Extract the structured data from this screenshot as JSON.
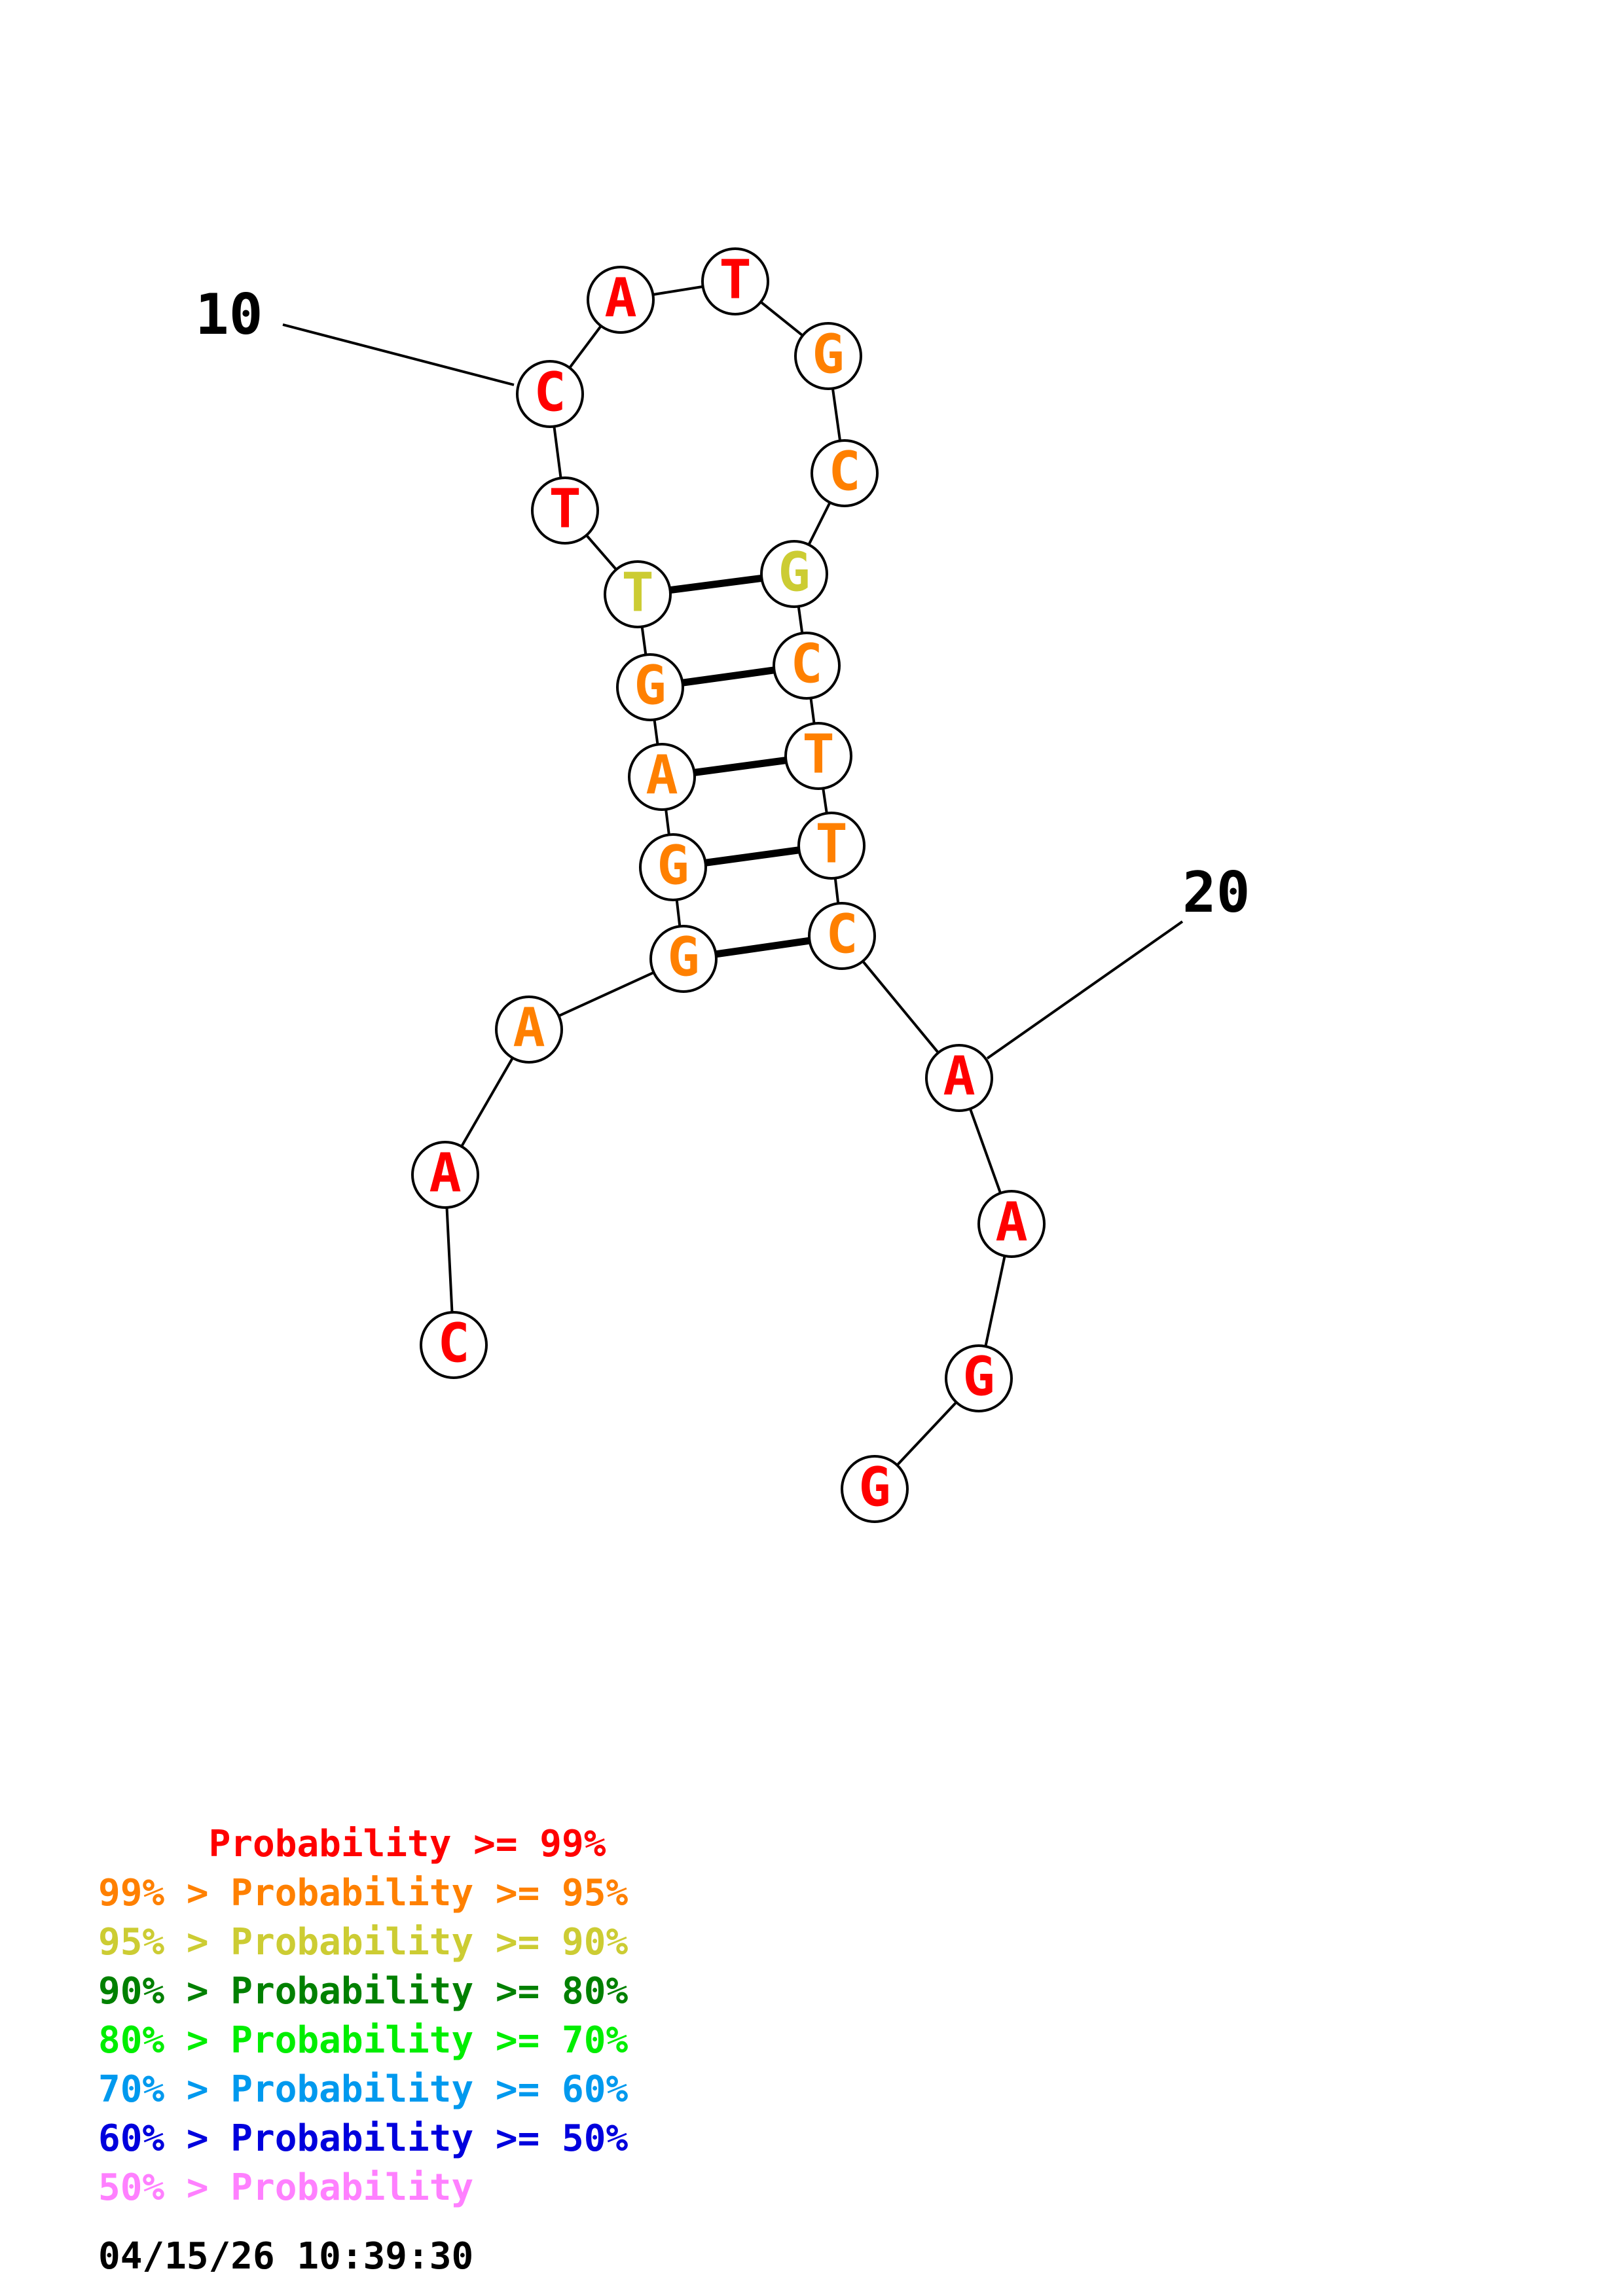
{
  "colors": {
    "p99": "#ff0000",
    "p95": "#ff8000",
    "p90": "#cccc33",
    "p80": "#008000",
    "p70": "#00ee00",
    "p60": "#0099ee",
    "p50": "#0000dd",
    "p0": "#ff80ff"
  },
  "sequence": [
    {
      "index": 1,
      "base": "C",
      "prob": "p99"
    },
    {
      "index": 2,
      "base": "A",
      "prob": "p99"
    },
    {
      "index": 3,
      "base": "A",
      "prob": "p95"
    },
    {
      "index": 4,
      "base": "G",
      "prob": "p95"
    },
    {
      "index": 5,
      "base": "G",
      "prob": "p95"
    },
    {
      "index": 6,
      "base": "A",
      "prob": "p95"
    },
    {
      "index": 7,
      "base": "G",
      "prob": "p95"
    },
    {
      "index": 8,
      "base": "T",
      "prob": "p90"
    },
    {
      "index": 9,
      "base": "T",
      "prob": "p99"
    },
    {
      "index": 10,
      "base": "C",
      "prob": "p99"
    },
    {
      "index": 11,
      "base": "A",
      "prob": "p99"
    },
    {
      "index": 12,
      "base": "T",
      "prob": "p99"
    },
    {
      "index": 13,
      "base": "G",
      "prob": "p95"
    },
    {
      "index": 14,
      "base": "C",
      "prob": "p95"
    },
    {
      "index": 15,
      "base": "G",
      "prob": "p90"
    },
    {
      "index": 16,
      "base": "C",
      "prob": "p95"
    },
    {
      "index": 17,
      "base": "T",
      "prob": "p95"
    },
    {
      "index": 18,
      "base": "T",
      "prob": "p95"
    },
    {
      "index": 19,
      "base": "C",
      "prob": "p95"
    },
    {
      "index": 20,
      "base": "A",
      "prob": "p99"
    },
    {
      "index": 21,
      "base": "A",
      "prob": "p99"
    },
    {
      "index": 22,
      "base": "G",
      "prob": "p99"
    },
    {
      "index": 23,
      "base": "G",
      "prob": "p99"
    }
  ],
  "pairs": [
    [
      4,
      19
    ],
    [
      5,
      18
    ],
    [
      6,
      17
    ],
    [
      7,
      16
    ],
    [
      8,
      15
    ]
  ],
  "number_labels": [
    {
      "index": 10,
      "text": "10"
    },
    {
      "index": 20,
      "text": "20"
    }
  ],
  "legend": [
    {
      "prefix": "     ",
      "text": "Probability >= 99%",
      "prob": "p99"
    },
    {
      "prefix": "99% > ",
      "text": "Probability >= 95%",
      "prob": "p95"
    },
    {
      "prefix": "95% > ",
      "text": "Probability >= 90%",
      "prob": "p90"
    },
    {
      "prefix": "90% > ",
      "text": "Probability >= 80%",
      "prob": "p80"
    },
    {
      "prefix": "80% > ",
      "text": "Probability >= 70%",
      "prob": "p70"
    },
    {
      "prefix": "70% > ",
      "text": "Probability >= 60%",
      "prob": "p60"
    },
    {
      "prefix": "60% > ",
      "text": "Probability >= 50%",
      "prob": "p50"
    },
    {
      "prefix": "50% > ",
      "text": "Probability",
      "prob": "p0"
    }
  ],
  "timestamp": "04/15/26 10:39:30"
}
